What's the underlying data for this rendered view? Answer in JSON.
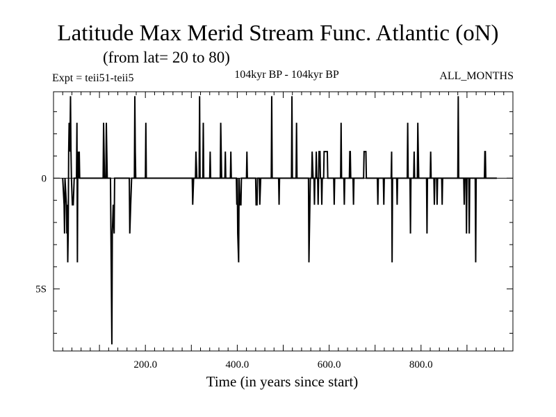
{
  "header": {
    "title": "Latitude Max Merid Stream Func. Atlantic (oN)",
    "subtitle": "(from lat= 20 to 80)",
    "expt": "Expt = teii51-teii5",
    "period": "104kyr BP - 104kyr BP",
    "months": "ALL_MONTHS"
  },
  "chart_data": {
    "type": "line",
    "title": "Latitude Max Merid Stream Func. Atlantic (oN)",
    "xlabel": "Time (in years since start)",
    "ylabel": "",
    "xlim": [
      0,
      1000
    ],
    "ylim": [
      -7.8,
      3.9
    ],
    "grid": false,
    "xticks": [
      200,
      400,
      600,
      800
    ],
    "xtick_labels": [
      "200.0",
      "400.0",
      "600.0",
      "800.0"
    ],
    "yticks": [
      0,
      -5
    ],
    "ytick_labels": [
      "0",
      "5S"
    ],
    "series": [
      {
        "values": [
          [
            20,
            0
          ],
          [
            23,
            -1.2
          ],
          [
            24,
            -2.5
          ],
          [
            25,
            0
          ],
          [
            28,
            -1.2
          ],
          [
            29,
            -2.5
          ],
          [
            30,
            -1.2
          ],
          [
            31,
            -3.8
          ],
          [
            32,
            -2.5
          ],
          [
            33,
            1.2
          ],
          [
            34,
            2.5
          ],
          [
            35,
            1.2
          ],
          [
            36,
            1.9
          ],
          [
            37,
            3.7
          ],
          [
            38,
            1.2
          ],
          [
            39,
            0
          ],
          [
            41,
            -1.2
          ],
          [
            43,
            -1.2
          ],
          [
            45,
            0
          ],
          [
            50,
            0
          ],
          [
            51,
            2.5
          ],
          [
            52,
            -3.8
          ],
          [
            53,
            1.2
          ],
          [
            54,
            0
          ],
          [
            56,
            1.2
          ],
          [
            57,
            0
          ],
          [
            108,
            0
          ],
          [
            109,
            2.5
          ],
          [
            110,
            1.2
          ],
          [
            111,
            0
          ],
          [
            114,
            0
          ],
          [
            115,
            2.5
          ],
          [
            116,
            1.2
          ],
          [
            117,
            0
          ],
          [
            124,
            0
          ],
          [
            125,
            -2.5
          ],
          [
            127,
            -7.5
          ],
          [
            128,
            -2.5
          ],
          [
            130,
            -1.2
          ],
          [
            132,
            -2.5
          ],
          [
            133,
            0
          ],
          [
            165,
            0
          ],
          [
            166,
            -2.5
          ],
          [
            168,
            -1.2
          ],
          [
            170,
            0
          ],
          [
            176,
            0
          ],
          [
            177,
            3.7
          ],
          [
            178,
            1.2
          ],
          [
            179,
            0
          ],
          [
            200,
            0
          ],
          [
            201,
            2.5
          ],
          [
            202,
            0
          ],
          [
            302,
            0
          ],
          [
            303,
            -1.2
          ],
          [
            305,
            0
          ],
          [
            309,
            0
          ],
          [
            310,
            1.2
          ],
          [
            312,
            0
          ],
          [
            317,
            0
          ],
          [
            318,
            3.7
          ],
          [
            319,
            0
          ],
          [
            325,
            0
          ],
          [
            326,
            2.5
          ],
          [
            327,
            0
          ],
          [
            340,
            0
          ],
          [
            341,
            1.2
          ],
          [
            342,
            0
          ],
          [
            363,
            0
          ],
          [
            364,
            2.5
          ],
          [
            365,
            1.2
          ],
          [
            366,
            0
          ],
          [
            373,
            0
          ],
          [
            374,
            1.2
          ],
          [
            375,
            0
          ],
          [
            385,
            0
          ],
          [
            386,
            1.2
          ],
          [
            387,
            0
          ],
          [
            398,
            0
          ],
          [
            399,
            -1.2
          ],
          [
            400,
            0
          ],
          [
            401,
            -2.5
          ],
          [
            403,
            -3.8
          ],
          [
            404,
            0
          ],
          [
            406,
            -1.2
          ],
          [
            408,
            -1.2
          ],
          [
            409,
            0
          ],
          [
            420,
            0
          ],
          [
            421,
            1.2
          ],
          [
            422,
            0
          ],
          [
            440,
            0
          ],
          [
            441,
            -1.2
          ],
          [
            443,
            -1.2
          ],
          [
            444,
            0
          ],
          [
            448,
            0
          ],
          [
            449,
            -1.2
          ],
          [
            451,
            0
          ],
          [
            474,
            0
          ],
          [
            475,
            3.7
          ],
          [
            476,
            0
          ],
          [
            490,
            0
          ],
          [
            491,
            -1.2
          ],
          [
            492,
            0
          ],
          [
            518,
            0
          ],
          [
            519,
            3.7
          ],
          [
            520,
            0
          ],
          [
            528,
            0
          ],
          [
            529,
            2.5
          ],
          [
            530,
            0
          ],
          [
            555,
            0
          ],
          [
            556,
            -3.8
          ],
          [
            557,
            -2.5
          ],
          [
            559,
            0
          ],
          [
            562,
            0
          ],
          [
            563,
            1.2
          ],
          [
            565,
            0
          ],
          [
            567,
            0
          ],
          [
            568,
            -1.2
          ],
          [
            569,
            0
          ],
          [
            571,
            0
          ],
          [
            572,
            1.2
          ],
          [
            573,
            0
          ],
          [
            575,
            0
          ],
          [
            576,
            -1.2
          ],
          [
            577,
            0
          ],
          [
            578,
            1.2
          ],
          [
            580,
            1.2
          ],
          [
            581,
            0
          ],
          [
            583,
            0
          ],
          [
            584,
            -1.2
          ],
          [
            585,
            0
          ],
          [
            588,
            0
          ],
          [
            589,
            1.2
          ],
          [
            596,
            1.2
          ],
          [
            597,
            0
          ],
          [
            610,
            0
          ],
          [
            611,
            -1.2
          ],
          [
            612,
            0
          ],
          [
            625,
            0
          ],
          [
            626,
            2.5
          ],
          [
            627,
            0
          ],
          [
            632,
            0
          ],
          [
            633,
            -1.2
          ],
          [
            634,
            0
          ],
          [
            644,
            0
          ],
          [
            645,
            1.2
          ],
          [
            646,
            1.2
          ],
          [
            647,
            0
          ],
          [
            652,
            0
          ],
          [
            653,
            -1.2
          ],
          [
            654,
            0
          ],
          [
            675,
            0
          ],
          [
            676,
            1.2
          ],
          [
            680,
            1.2
          ],
          [
            681,
            0
          ],
          [
            705,
            0
          ],
          [
            706,
            -1.2
          ],
          [
            707,
            0
          ],
          [
            718,
            0
          ],
          [
            719,
            -1.2
          ],
          [
            720,
            0
          ],
          [
            735,
            0
          ],
          [
            736,
            1.2
          ],
          [
            737,
            -3.8
          ],
          [
            738,
            0
          ],
          [
            747,
            0
          ],
          [
            748,
            -1.2
          ],
          [
            749,
            0
          ],
          [
            770,
            0
          ],
          [
            771,
            2.5
          ],
          [
            772,
            0
          ],
          [
            776,
            0
          ],
          [
            777,
            -2.5
          ],
          [
            778,
            0
          ],
          [
            784,
            0
          ],
          [
            785,
            1.2
          ],
          [
            786,
            0
          ],
          [
            792,
            0
          ],
          [
            793,
            2.5
          ],
          [
            794,
            1.2
          ],
          [
            795,
            0
          ],
          [
            812,
            0
          ],
          [
            813,
            -2.5
          ],
          [
            814,
            0
          ],
          [
            820,
            0
          ],
          [
            821,
            1.2
          ],
          [
            822,
            0
          ],
          [
            828,
            0
          ],
          [
            829,
            -1.2
          ],
          [
            830,
            0
          ],
          [
            834,
            0
          ],
          [
            835,
            -1.2
          ],
          [
            836,
            0
          ],
          [
            845,
            0
          ],
          [
            846,
            -1.2
          ],
          [
            847,
            0
          ],
          [
            880,
            0
          ],
          [
            881,
            3.7
          ],
          [
            882,
            0
          ],
          [
            893,
            0
          ],
          [
            894,
            -1.2
          ],
          [
            895,
            0
          ],
          [
            898,
            0
          ],
          [
            899,
            -2.5
          ],
          [
            900,
            0
          ],
          [
            904,
            0
          ],
          [
            905,
            -2.5
          ],
          [
            906,
            0
          ],
          [
            918,
            0
          ],
          [
            919,
            -3.8
          ],
          [
            920,
            0
          ],
          [
            938,
            0
          ],
          [
            939,
            1.2
          ],
          [
            940,
            1.2
          ],
          [
            941,
            0
          ],
          [
            965,
            0
          ]
        ]
      }
    ]
  }
}
